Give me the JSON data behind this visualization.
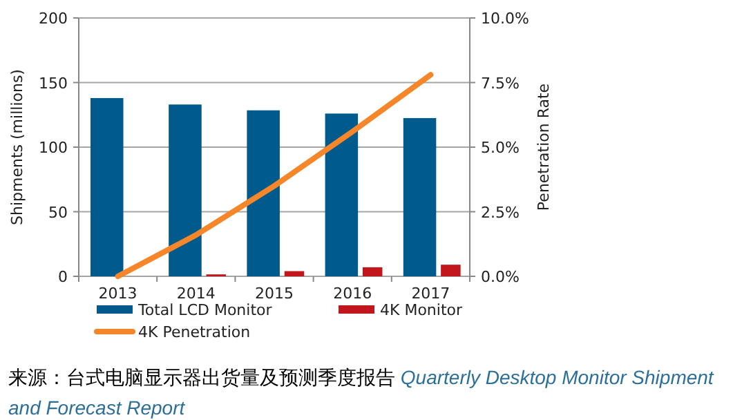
{
  "chart_data": {
    "type": "bar",
    "categories": [
      "2013",
      "2014",
      "2015",
      "2016",
      "2017"
    ],
    "series": [
      {
        "name": "Total LCD Monitor",
        "color": "#005a8c",
        "values": [
          138,
          133,
          128.5,
          126,
          122.5
        ]
      },
      {
        "name": "4K Monitor",
        "color": "#c0161c",
        "values": [
          0,
          1.5,
          4,
          7,
          9
        ]
      },
      {
        "name": "4K Penetration",
        "color": "#f5862a",
        "type": "line",
        "axis": "y2",
        "values": [
          0,
          1.6,
          3.5,
          5.6,
          7.8
        ]
      }
    ],
    "ylabel": "Shipments (millions)",
    "y2label": "Penetration Rate",
    "ylim": [
      0,
      200
    ],
    "yticks": [
      0,
      50,
      100,
      150,
      200
    ],
    "y2lim": [
      0,
      10
    ],
    "y2ticks": [
      {
        "value": 0,
        "label": "0.0%"
      },
      {
        "value": 2.5,
        "label": "2.5%"
      },
      {
        "value": 5,
        "label": "5.0%"
      },
      {
        "value": 7.5,
        "label": "7.5%"
      },
      {
        "value": 10,
        "label": "10.0%"
      }
    ],
    "grid": "y",
    "legend": "bottom",
    "annotations": [
      "来源：台式电脑显示器出货量及预测季度报告",
      "Quarterly Desktop Monitor Shipment and Forecast Report"
    ]
  }
}
